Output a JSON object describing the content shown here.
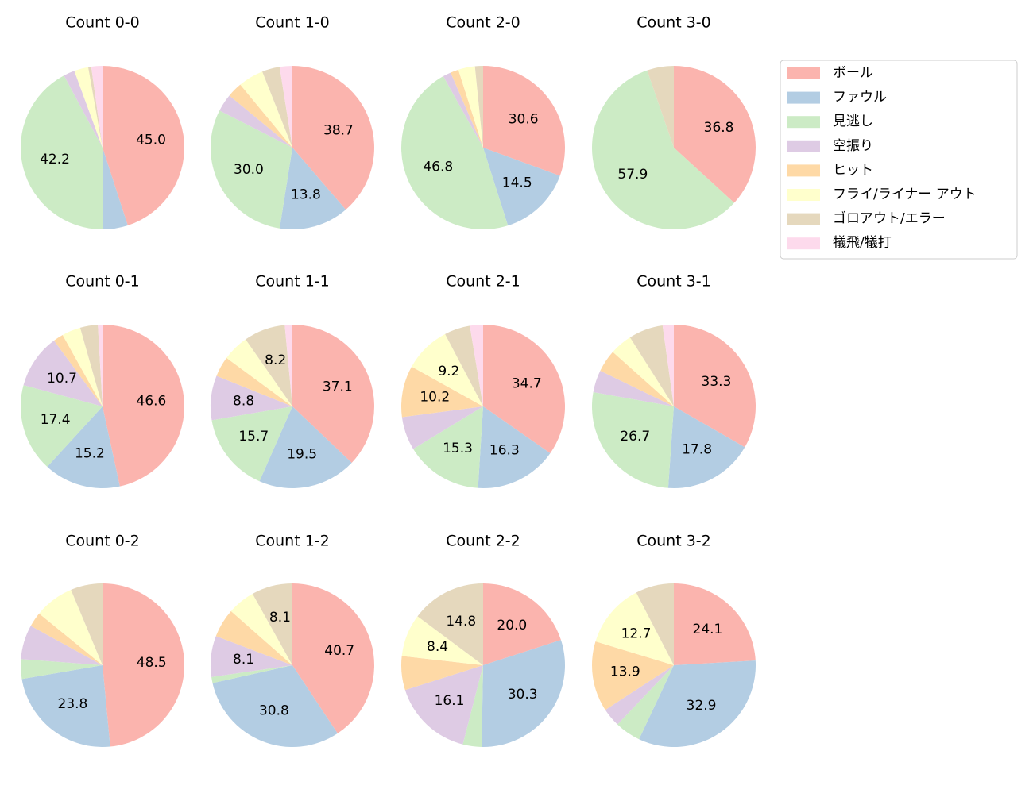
{
  "legend": {
    "labels": [
      "ボール",
      "ファウル",
      "見逃し",
      "空振り",
      "ヒット",
      "フライ/ライナー アウト",
      "ゴロアウト/エラー",
      "犠飛/犠打"
    ],
    "colors": [
      "#fbb4ae",
      "#b3cde3",
      "#ccebc5",
      "#decbe4",
      "#fed9a6",
      "#ffffcc",
      "#e5d8bd",
      "#fddaec"
    ]
  },
  "chart_data": [
    {
      "type": "pie",
      "title": "Count 0-0",
      "values": [
        45.0,
        5.0,
        42.2,
        2.2,
        0,
        2.8,
        0.6,
        2.2
      ],
      "value_labels": [
        "45.0",
        null,
        "42.2",
        null,
        null,
        null,
        null,
        null
      ]
    },
    {
      "type": "pie",
      "title": "Count 1-0",
      "values": [
        38.7,
        13.8,
        30.0,
        3.5,
        3.0,
        5.0,
        3.5,
        2.5
      ],
      "value_labels": [
        "38.7",
        "13.8",
        "30.0",
        null,
        null,
        null,
        null,
        null
      ]
    },
    {
      "type": "pie",
      "title": "Count 2-0",
      "values": [
        30.6,
        14.5,
        46.8,
        1.6,
        1.6,
        3.3,
        1.6,
        0
      ],
      "value_labels": [
        "30.6",
        "14.5",
        "46.8",
        null,
        null,
        null,
        null,
        null
      ]
    },
    {
      "type": "pie",
      "title": "Count 3-0",
      "values": [
        36.8,
        0,
        57.9,
        0,
        0,
        0,
        5.3,
        0
      ],
      "value_labels": [
        "36.8",
        null,
        "57.9",
        null,
        null,
        null,
        null,
        null
      ]
    },
    {
      "type": "pie",
      "title": "Count 0-1",
      "values": [
        46.6,
        15.2,
        17.4,
        10.7,
        2.0,
        3.7,
        3.5,
        0.9
      ],
      "value_labels": [
        "46.6",
        "15.2",
        "17.4",
        "10.7",
        null,
        null,
        null,
        null
      ]
    },
    {
      "type": "pie",
      "title": "Count 1-1",
      "values": [
        37.1,
        19.5,
        15.7,
        8.8,
        4.0,
        5.2,
        8.2,
        1.5
      ],
      "value_labels": [
        "37.1",
        "19.5",
        "15.7",
        "8.8",
        null,
        null,
        "8.2",
        null
      ]
    },
    {
      "type": "pie",
      "title": "Count 2-1",
      "values": [
        34.7,
        16.3,
        15.3,
        6.6,
        10.2,
        9.2,
        5.1,
        2.6
      ],
      "value_labels": [
        "34.7",
        "16.3",
        "15.3",
        null,
        "10.2",
        "9.2",
        null,
        null
      ]
    },
    {
      "type": "pie",
      "title": "Count 3-1",
      "values": [
        33.3,
        17.8,
        26.7,
        4.4,
        4.4,
        4.4,
        6.8,
        2.2
      ],
      "value_labels": [
        "33.3",
        "17.8",
        "26.7",
        null,
        null,
        null,
        null,
        null
      ]
    },
    {
      "type": "pie",
      "title": "Count 0-2",
      "values": [
        48.5,
        23.8,
        3.9,
        6.8,
        2.9,
        7.8,
        6.3,
        0
      ],
      "value_labels": [
        "48.5",
        "23.8",
        null,
        null,
        null,
        null,
        null,
        null
      ]
    },
    {
      "type": "pie",
      "title": "Count 1-2",
      "values": [
        40.7,
        30.8,
        1.2,
        8.1,
        5.7,
        5.4,
        8.1,
        0
      ],
      "value_labels": [
        "40.7",
        "30.8",
        null,
        "8.1",
        null,
        null,
        "8.1",
        null
      ]
    },
    {
      "type": "pie",
      "title": "Count 2-2",
      "values": [
        20.0,
        30.3,
        3.7,
        16.1,
        6.7,
        8.4,
        14.8,
        0
      ],
      "value_labels": [
        "20.0",
        "30.3",
        null,
        "16.1",
        null,
        "8.4",
        "14.8",
        null
      ]
    },
    {
      "type": "pie",
      "title": "Count 3-2",
      "values": [
        24.1,
        32.9,
        5.1,
        3.7,
        13.9,
        12.7,
        7.6,
        0
      ],
      "value_labels": [
        "24.1",
        "32.9",
        null,
        null,
        "13.9",
        "12.7",
        null,
        null
      ]
    }
  ]
}
